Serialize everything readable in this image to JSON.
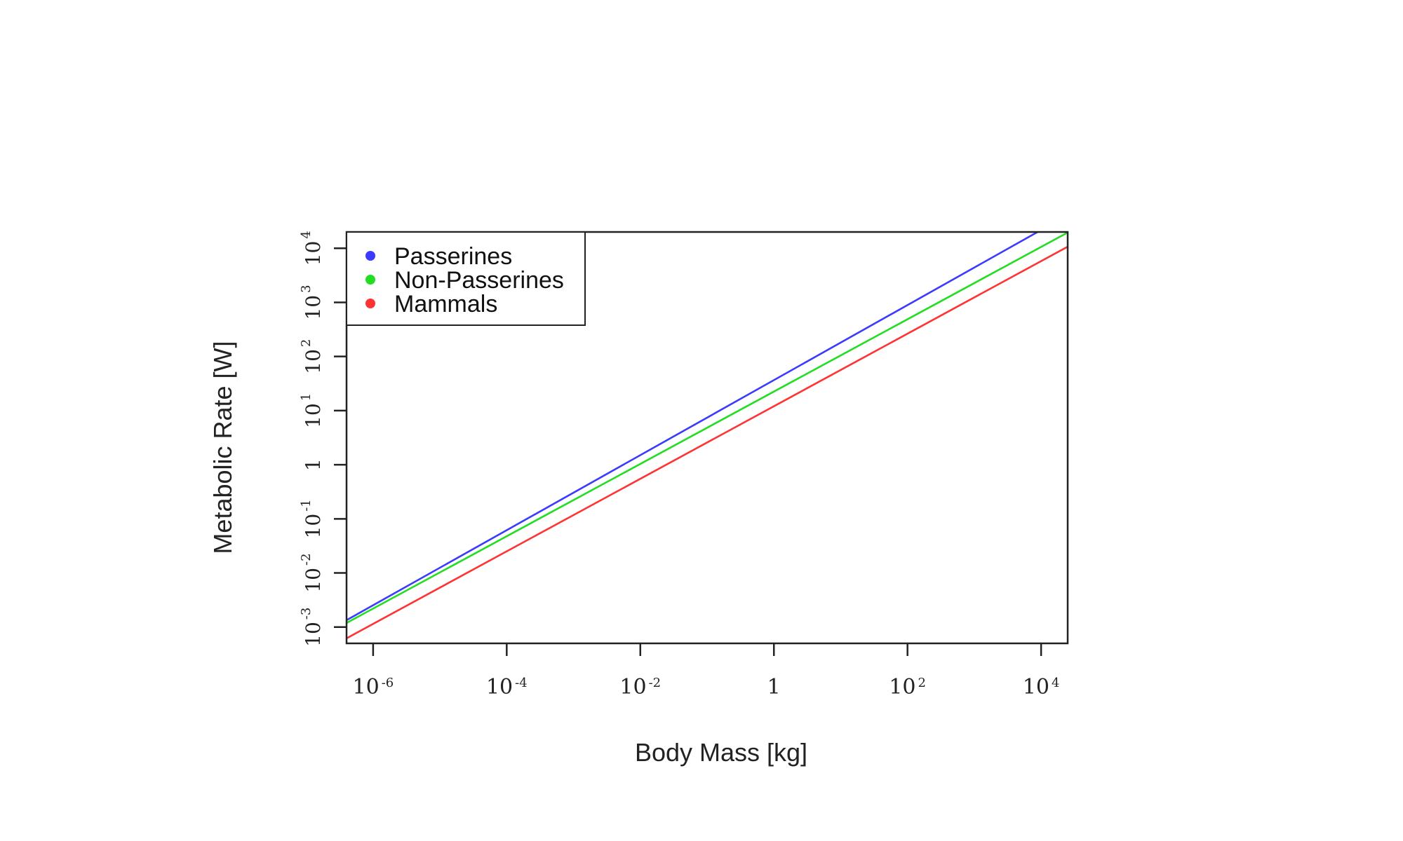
{
  "chart_data": {
    "type": "line",
    "xlabel": "Body Mass [kg]",
    "ylabel": "Metabolic Rate [W]",
    "x_scale": "log10",
    "y_scale": "log10",
    "xlim": [
      4e-07,
      25000
    ],
    "ylim": [
      0.0005,
      20000
    ],
    "grid": false,
    "legend_position": "top-left",
    "x_ticks": [
      {
        "value": 1e-06,
        "base": "10",
        "exp": "-6"
      },
      {
        "value": 0.0001,
        "base": "10",
        "exp": "-4"
      },
      {
        "value": 0.01,
        "base": "10",
        "exp": "-2"
      },
      {
        "value": 1,
        "base": "1",
        "exp": ""
      },
      {
        "value": 100,
        "base": "10",
        "exp": "2"
      },
      {
        "value": 10000,
        "base": "10",
        "exp": "4"
      }
    ],
    "y_ticks": [
      {
        "value": 0.001,
        "base": "10",
        "exp": "-3"
      },
      {
        "value": 0.01,
        "base": "10",
        "exp": "-2"
      },
      {
        "value": 0.1,
        "base": "10",
        "exp": "-1"
      },
      {
        "value": 1,
        "base": "1",
        "exp": ""
      },
      {
        "value": 10,
        "base": "10",
        "exp": "1"
      },
      {
        "value": 100,
        "base": "10",
        "exp": "2"
      },
      {
        "value": 1000,
        "base": "10",
        "exp": "3"
      },
      {
        "value": 10000,
        "base": "10",
        "exp": "4"
      }
    ],
    "series": [
      {
        "name": "Passerines",
        "color": "#3b3bff",
        "x": [
          4e-07,
          25000
        ],
        "y": [
          0.00134,
          41000
        ]
      },
      {
        "name": "Non-Passerines",
        "color": "#22dd22",
        "x": [
          4e-07,
          25000
        ],
        "y": [
          0.00119,
          19500
        ]
      },
      {
        "name": "Mammals",
        "color": "#ff3333",
        "x": [
          4e-07,
          25000
        ],
        "y": [
          0.00062,
          10700
        ]
      }
    ]
  }
}
